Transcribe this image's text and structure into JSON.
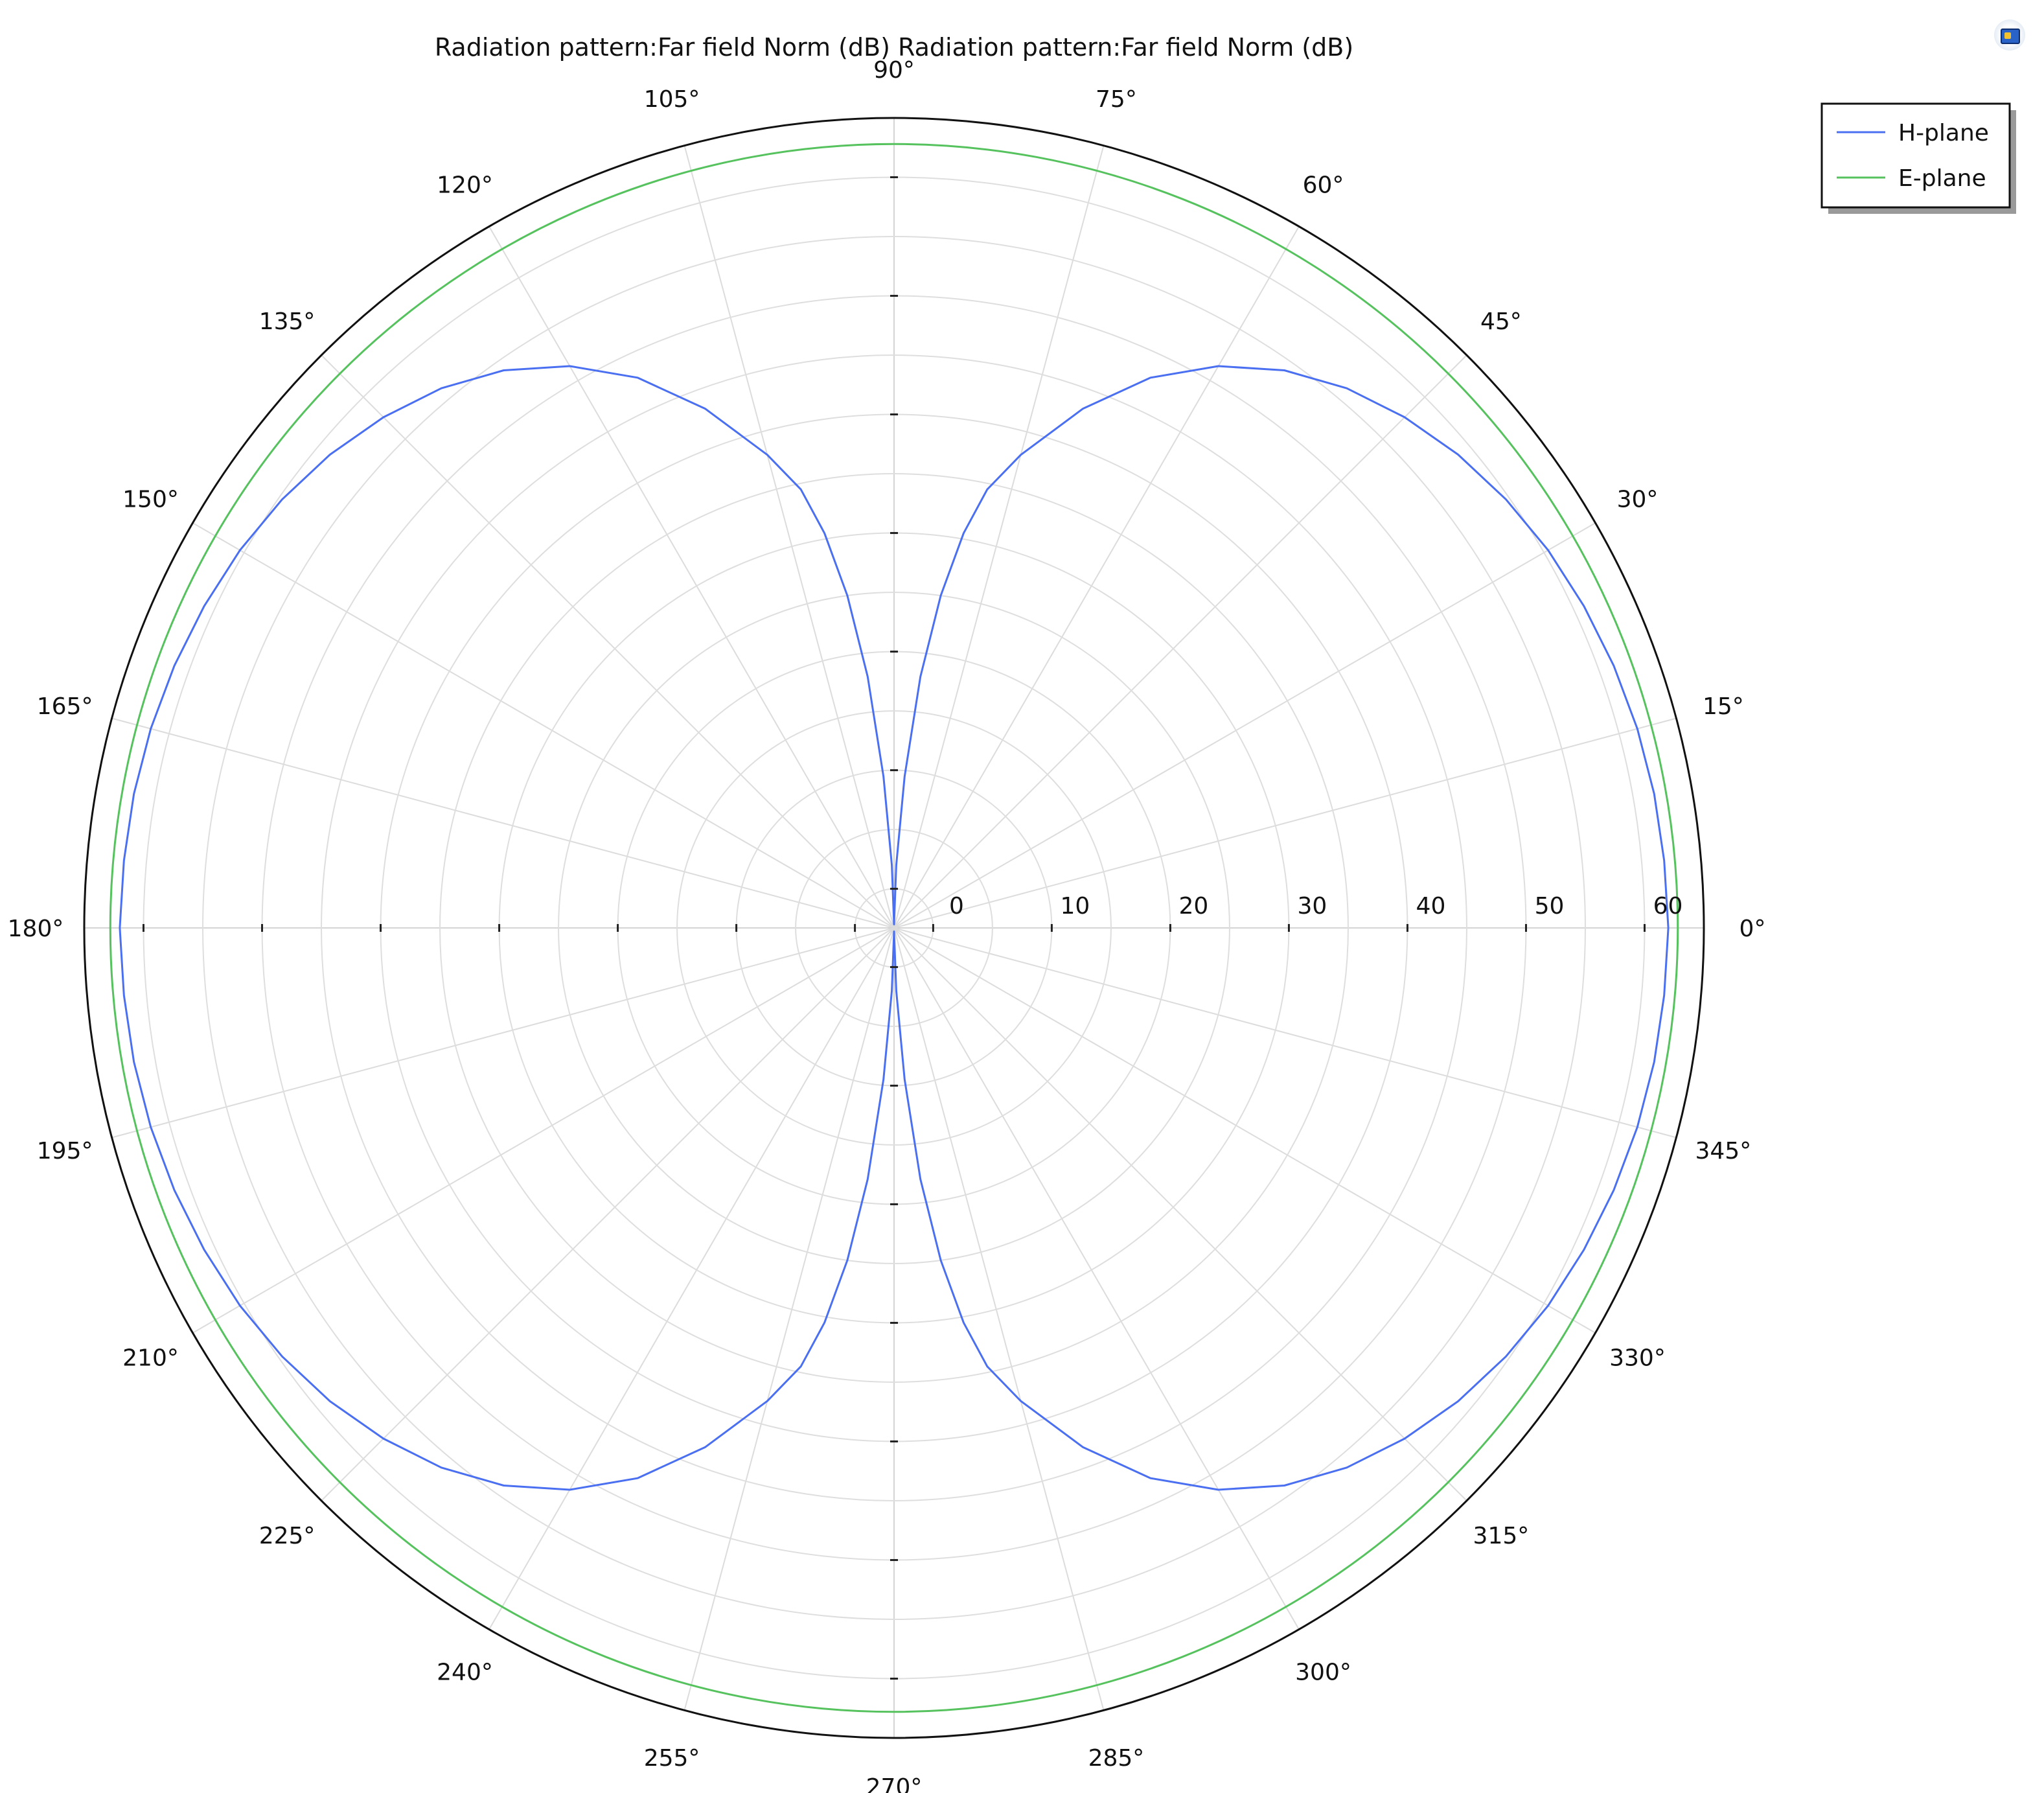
{
  "toolbar": {
    "icon": "plot-window-icon"
  },
  "chart_data": {
    "type": "polar-line",
    "title": "Radiation pattern:Far field Norm (dB) Radiation pattern:Far field Norm (dB)",
    "angle_unit": "degrees",
    "angle_ticks": [
      0,
      15,
      30,
      45,
      60,
      75,
      90,
      105,
      120,
      135,
      150,
      165,
      180,
      195,
      210,
      225,
      240,
      255,
      270,
      285,
      300,
      315,
      330,
      345
    ],
    "angle_tick_labels": [
      "0°",
      "15°",
      "30°",
      "45°",
      "60°",
      "75°",
      "90°",
      "105°",
      "120°",
      "135°",
      "150°",
      "165°",
      "180°",
      "195°",
      "210°",
      "225°",
      "240°",
      "255°",
      "270°",
      "285°",
      "300°",
      "315°",
      "330°",
      "345°"
    ],
    "radial_ticks": [
      0,
      10,
      20,
      30,
      40,
      50,
      60
    ],
    "radial_tick_labels": [
      "0",
      "10",
      "20",
      "30",
      "40",
      "50",
      "60"
    ],
    "rlim": [
      -3.3,
      65
    ],
    "grid": true,
    "legend_position": "top-right",
    "series": [
      {
        "name": "H-plane",
        "color": "#4a6ff0",
        "theta": [
          0,
          5,
          10,
          15,
          20,
          25,
          30,
          35,
          40,
          45,
          50,
          55,
          60,
          65,
          70,
          75,
          78,
          80,
          82,
          84,
          86,
          88,
          90
        ],
        "r": [
          62.0,
          61.9,
          61.8,
          61.6,
          61.3,
          60.9,
          60.4,
          59.7,
          58.8,
          57.6,
          56.1,
          54.1,
          51.4,
          47.9,
          43.3,
          38.0,
          34.5,
          30.5,
          25.0,
          18.0,
          9.5,
          2.0,
          -3.0
        ],
        "symmetry": "mirrored about 90° and 180° axes"
      },
      {
        "name": "E-plane",
        "color": "#55c25e",
        "theta": [
          0,
          90,
          180,
          270
        ],
        "r": [
          62.8,
          62.8,
          62.8,
          62.8
        ]
      }
    ]
  }
}
